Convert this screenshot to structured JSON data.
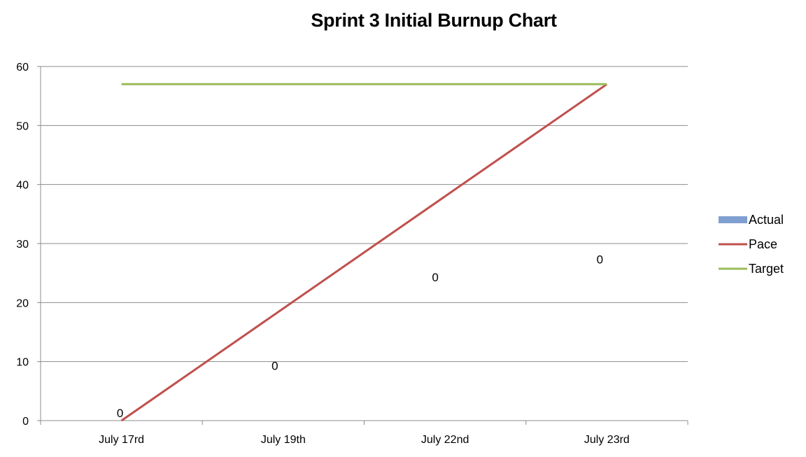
{
  "chart_data": {
    "type": "bar",
    "title": "Sprint 3 Initial Burnup Chart",
    "xlabel": "",
    "ylabel": "",
    "ylim": [
      0,
      60
    ],
    "yticks": [
      0,
      10,
      20,
      30,
      40,
      50,
      60
    ],
    "grid": true,
    "legend_position": "right",
    "categories": [
      "July 17rd",
      "July 19th",
      "July 22nd",
      "July 23rd"
    ],
    "series": [
      {
        "name": "Actual",
        "type": "bar",
        "color": "#7f9fd0",
        "values": [
          0,
          0,
          0,
          0
        ],
        "data_labels": [
          "0",
          "0",
          "0",
          "0"
        ],
        "label_heights": [
          0,
          8,
          23,
          26
        ]
      },
      {
        "name": "Pace",
        "type": "line",
        "color": "#c0504d",
        "values": [
          0,
          19,
          38,
          57
        ]
      },
      {
        "name": "Target",
        "type": "line",
        "color": "#9bbb59",
        "values": [
          57,
          57,
          57,
          57
        ]
      }
    ]
  }
}
